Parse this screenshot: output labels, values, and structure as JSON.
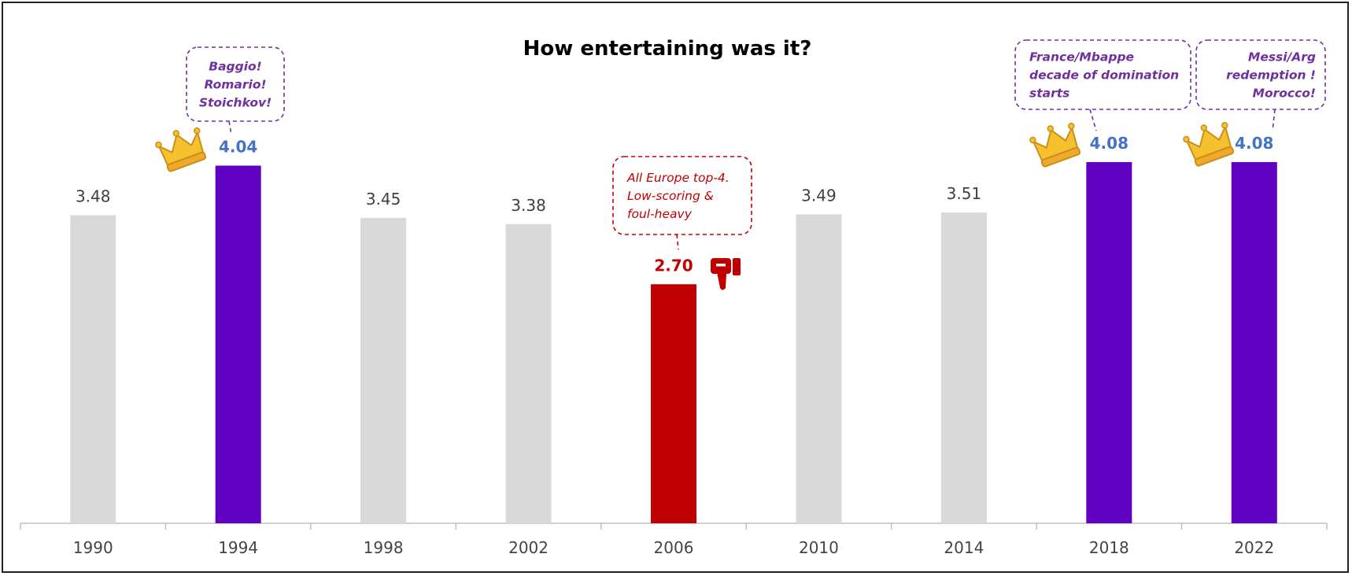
{
  "chart_data": {
    "type": "bar",
    "title": "How entertaining was it?",
    "xlabel": "",
    "ylabel": "",
    "ylim": [
      0,
      4.5
    ],
    "grid": false,
    "categories": [
      "1990",
      "1994",
      "1998",
      "2002",
      "2006",
      "2010",
      "2014",
      "2018",
      "2022"
    ],
    "values": [
      3.48,
      4.04,
      3.45,
      3.38,
      2.7,
      3.49,
      3.51,
      4.08,
      4.08
    ],
    "value_labels": [
      "3.48",
      "4.04",
      "3.45",
      "3.38",
      "2.70",
      "3.49",
      "3.51",
      "4.08",
      "4.08"
    ],
    "bar_colors": [
      "#d9d9d9",
      "#6000c0",
      "#d9d9d9",
      "#d9d9d9",
      "#c00000",
      "#d9d9d9",
      "#d9d9d9",
      "#6000c0",
      "#6000c0"
    ],
    "label_colors": [
      "#404040",
      "#4472c4",
      "#404040",
      "#404040",
      "#c00000",
      "#404040",
      "#404040",
      "#4472c4",
      "#4472c4"
    ],
    "annotations": [
      {
        "category": "1994",
        "lines": [
          "Baggio!",
          "Romario!",
          "Stoichkov!"
        ],
        "color": "#7030a0",
        "icon": "crown-icon"
      },
      {
        "category": "2006",
        "lines": [
          "All Europe top-4.",
          "Low-scoring &",
          "foul-heavy"
        ],
        "color": "#c00000",
        "icon": "thumbs-down-icon"
      },
      {
        "category": "2018",
        "lines": [
          "France/Mbappe",
          "decade of domination",
          "starts"
        ],
        "color": "#7030a0",
        "icon": "crown-icon"
      },
      {
        "category": "2022",
        "lines": [
          "Messi/Arg",
          "redemption !",
          "Morocco!"
        ],
        "color": "#7030a0",
        "icon": "crown-icon"
      }
    ]
  }
}
